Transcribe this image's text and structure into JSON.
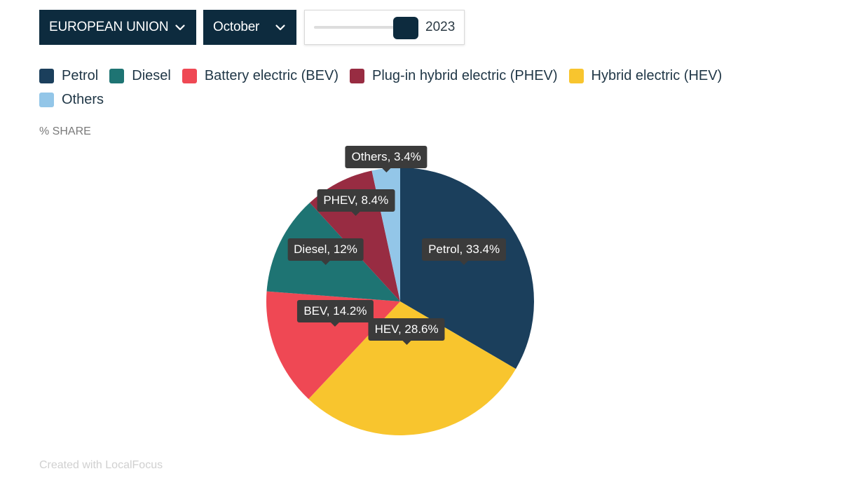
{
  "controls": {
    "region": {
      "label": "EUROPEAN UNION",
      "icon": "chevron-down-icon"
    },
    "month": {
      "label": "October",
      "icon": "chevron-down-icon"
    },
    "year_slider": {
      "value": "2023"
    }
  },
  "axis_label": "% SHARE",
  "credit": "Created with LocalFocus",
  "colors": {
    "petrol": "#1b3f5c",
    "diesel": "#1e7473",
    "bev": "#ef4854",
    "phev": "#982c42",
    "hev": "#f8c52e",
    "others": "#93c6e8",
    "controls_bg": "#0d2b3e",
    "tooltip_bg": "#3b3b3b"
  },
  "chart_data": {
    "type": "pie",
    "title": "",
    "unit": "%",
    "legend_placement": "top-left",
    "legend": [
      {
        "label": "Petrol",
        "color": "#1b3f5c"
      },
      {
        "label": "Diesel",
        "color": "#1e7473"
      },
      {
        "label": "Battery electric (BEV)",
        "color": "#ef4854"
      },
      {
        "label": "Plug-in hybrid electric (PHEV)",
        "color": "#982c42"
      },
      {
        "label": "Hybrid electric (HEV)",
        "color": "#f8c52e"
      },
      {
        "label": "Others",
        "color": "#93c6e8"
      }
    ],
    "slices": [
      {
        "key": "petrol",
        "short": "Petrol",
        "value": 33.4,
        "label": "Petrol, 33.4%",
        "color": "#1b3f5c"
      },
      {
        "key": "hev",
        "short": "HEV",
        "value": 28.6,
        "label": "HEV, 28.6%",
        "color": "#f8c52e"
      },
      {
        "key": "bev",
        "short": "BEV",
        "value": 14.2,
        "label": "BEV, 14.2%",
        "color": "#ef4854"
      },
      {
        "key": "diesel",
        "short": "Diesel",
        "value": 12,
        "label": "Diesel, 12%",
        "color": "#1e7473"
      },
      {
        "key": "phev",
        "short": "PHEV",
        "value": 8.4,
        "label": "PHEV, 8.4%",
        "color": "#982c42"
      },
      {
        "key": "others",
        "short": "Others",
        "value": 3.4,
        "label": "Others, 3.4%",
        "color": "#93c6e8"
      }
    ]
  }
}
